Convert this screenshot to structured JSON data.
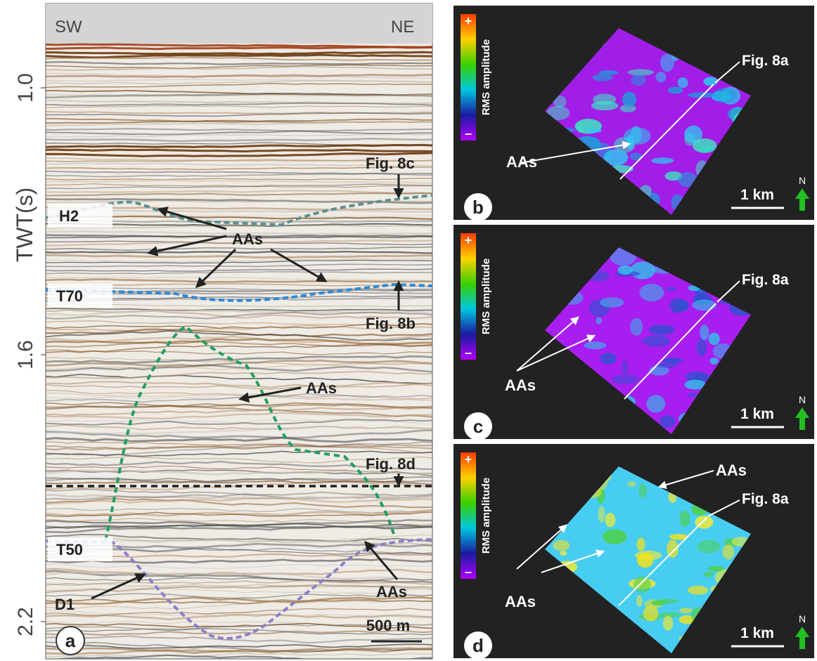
{
  "panel_a": {
    "label": "a",
    "left": "SW",
    "right": "NE",
    "axis_title": "TWT(s)",
    "ticks": [
      "1.0",
      "1.6",
      "2.2"
    ],
    "annotations": {
      "fig_8c": "Fig. 8c",
      "h2": "H2",
      "aas_upper": "AAs",
      "t70": "T70",
      "fig_8b": "Fig. 8b",
      "aas_middle": "AAs",
      "fig_8d": "Fig. 8d",
      "t50": "T50",
      "d1": "D1",
      "aas_lower": "AAs"
    },
    "scale_bar": "500 m"
  },
  "panels": [
    {
      "label": "b",
      "colorbar_title": "RMS amplitude",
      "colorbar_max": "+",
      "colorbar_min": "–",
      "line_label": "Fig. 8a",
      "aas": [
        "AAs"
      ],
      "scale_bar": "1 km",
      "north": "N"
    },
    {
      "label": "c",
      "colorbar_title": "RMS amplitude",
      "colorbar_max": "+",
      "colorbar_min": "–",
      "line_label": "Fig. 8a",
      "aas": [
        "AAs"
      ],
      "scale_bar": "1 km",
      "north": "N"
    },
    {
      "label": "d",
      "colorbar_title": "RMS amplitude",
      "colorbar_max": "+",
      "colorbar_min": "–",
      "line_label": "Fig. 8a",
      "aas": [
        "AAs",
        "AAs"
      ],
      "scale_bar": "1 km",
      "north": "N"
    }
  ]
}
